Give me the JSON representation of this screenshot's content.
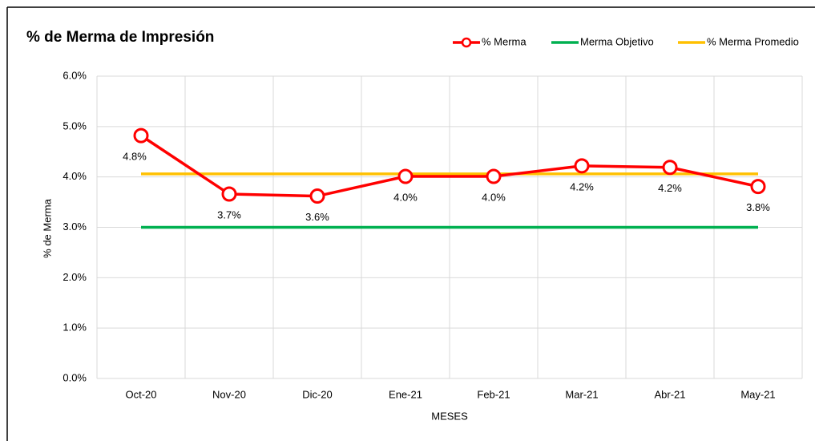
{
  "chart_data": {
    "type": "line",
    "title": "% de Merma de Impresión",
    "xlabel": "MESES",
    "ylabel": "% de Merma",
    "categories": [
      "Oct-20",
      "Nov-20",
      "Dic-20",
      "Ene-21",
      "Feb-21",
      "Mar-21",
      "Abr-21",
      "May-21"
    ],
    "series": [
      {
        "name": "% Merma",
        "color": "#ff0000",
        "values": [
          4.82,
          3.66,
          3.62,
          4.01,
          4.01,
          4.22,
          4.19,
          3.81
        ],
        "value_labels": [
          "4.8%",
          "3.7%",
          "3.6%",
          "4.0%",
          "4.0%",
          "4.2%",
          "4.2%",
          "3.8%"
        ]
      },
      {
        "name": "Merma Objetivo",
        "color": "#00b050",
        "values": [
          3.0,
          3.0,
          3.0,
          3.0,
          3.0,
          3.0,
          3.0,
          3.0
        ]
      },
      {
        "name": "% Merma Promedio",
        "color": "#ffc000",
        "values": [
          4.06,
          4.06,
          4.06,
          4.06,
          4.06,
          4.06,
          4.06,
          4.06
        ]
      }
    ],
    "ylim": [
      0,
      6
    ],
    "yticks": [
      {
        "value": 0,
        "label": "0.0%"
      },
      {
        "value": 1,
        "label": "1.0%"
      },
      {
        "value": 2,
        "label": "2.0%"
      },
      {
        "value": 3,
        "label": "3.0%"
      },
      {
        "value": 4,
        "label": "4.0%"
      },
      {
        "value": 5,
        "label": "5.0%"
      },
      {
        "value": 6,
        "label": "6.0%"
      }
    ],
    "grid": true,
    "legend": "top-right"
  }
}
